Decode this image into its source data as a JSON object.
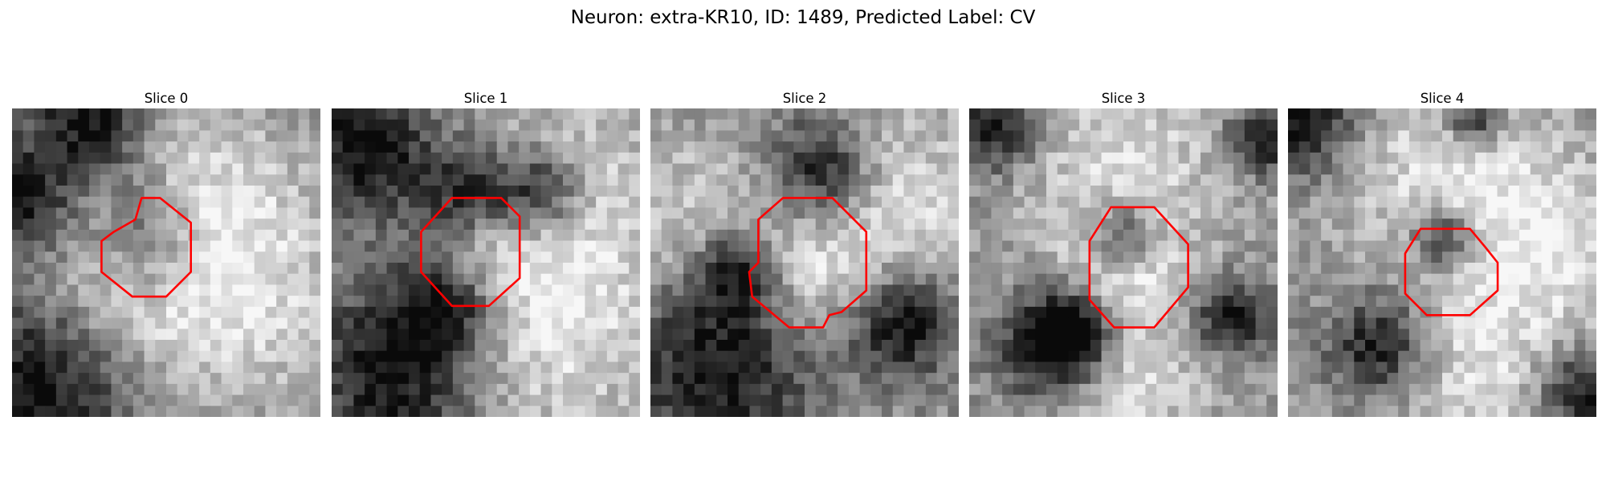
{
  "figure": {
    "title": "Neuron: extra-KR10, ID: 1489, Predicted Label: CV",
    "roi_color": "#ff0000",
    "colormap": "gray"
  },
  "slices": [
    {
      "title": "Slice 0",
      "seed": 11,
      "light": [
        [
          0.58,
          0.3,
          0.22
        ],
        [
          0.35,
          0.55,
          0.2
        ],
        [
          0.72,
          0.6,
          0.25
        ]
      ],
      "dark": [
        [
          0.45,
          0.42,
          0.14
        ],
        [
          0.08,
          0.9,
          0.22
        ],
        [
          0.25,
          0.04,
          0.14
        ],
        [
          0.02,
          0.3,
          0.12
        ]
      ],
      "roi": [
        [
          0.33,
          0.4
        ],
        [
          0.4,
          0.36
        ],
        [
          0.42,
          0.29
        ],
        [
          0.48,
          0.29
        ],
        [
          0.58,
          0.37
        ],
        [
          0.58,
          0.53
        ],
        [
          0.5,
          0.61
        ],
        [
          0.39,
          0.61
        ],
        [
          0.29,
          0.53
        ],
        [
          0.29,
          0.43
        ]
      ]
    },
    {
      "title": "Slice 1",
      "seed": 23,
      "light": [
        [
          0.47,
          0.47,
          0.12
        ],
        [
          0.75,
          0.3,
          0.25
        ],
        [
          0.7,
          0.75,
          0.25
        ]
      ],
      "dark": [
        [
          0.45,
          0.29,
          0.12
        ],
        [
          0.38,
          0.62,
          0.12
        ],
        [
          0.2,
          0.86,
          0.2
        ],
        [
          0.1,
          0.12,
          0.16
        ],
        [
          0.68,
          0.27,
          0.1
        ]
      ],
      "roi": [
        [
          0.29,
          0.4
        ],
        [
          0.39,
          0.29
        ],
        [
          0.55,
          0.29
        ],
        [
          0.61,
          0.35
        ],
        [
          0.61,
          0.55
        ],
        [
          0.51,
          0.64
        ],
        [
          0.39,
          0.64
        ],
        [
          0.29,
          0.53
        ]
      ]
    },
    {
      "title": "Slice 2",
      "seed": 37,
      "light": [
        [
          0.5,
          0.55,
          0.15
        ],
        [
          0.8,
          0.3,
          0.22
        ],
        [
          0.15,
          0.4,
          0.2
        ]
      ],
      "dark": [
        [
          0.55,
          0.2,
          0.12
        ],
        [
          0.28,
          0.52,
          0.1
        ],
        [
          0.22,
          0.82,
          0.22
        ],
        [
          0.82,
          0.7,
          0.12
        ]
      ],
      "roi": [
        [
          0.35,
          0.36
        ],
        [
          0.43,
          0.29
        ],
        [
          0.59,
          0.29
        ],
        [
          0.7,
          0.4
        ],
        [
          0.7,
          0.59
        ],
        [
          0.62,
          0.66
        ],
        [
          0.58,
          0.67
        ],
        [
          0.56,
          0.71
        ],
        [
          0.45,
          0.71
        ],
        [
          0.33,
          0.61
        ],
        [
          0.32,
          0.53
        ],
        [
          0.35,
          0.5
        ]
      ]
    },
    {
      "title": "Slice 3",
      "seed": 51,
      "light": [
        [
          0.5,
          0.52,
          0.12
        ],
        [
          0.5,
          0.2,
          0.25
        ],
        [
          0.5,
          0.88,
          0.2
        ]
      ],
      "dark": [
        [
          0.5,
          0.42,
          0.08
        ],
        [
          0.25,
          0.78,
          0.12
        ],
        [
          0.35,
          0.72,
          0.1
        ],
        [
          0.08,
          0.06,
          0.1
        ],
        [
          0.85,
          0.68,
          0.09
        ],
        [
          0.95,
          0.1,
          0.08
        ]
      ],
      "roi": [
        [
          0.39,
          0.43
        ],
        [
          0.46,
          0.32
        ],
        [
          0.6,
          0.32
        ],
        [
          0.71,
          0.44
        ],
        [
          0.71,
          0.58
        ],
        [
          0.6,
          0.71
        ],
        [
          0.47,
          0.71
        ],
        [
          0.39,
          0.62
        ]
      ]
    },
    {
      "title": "Slice 4",
      "seed": 67,
      "light": [
        [
          0.5,
          0.2,
          0.25
        ],
        [
          0.6,
          0.85,
          0.22
        ],
        [
          0.85,
          0.45,
          0.2
        ]
      ],
      "dark": [
        [
          0.05,
          0.04,
          0.12
        ],
        [
          0.3,
          0.77,
          0.12
        ],
        [
          0.5,
          0.42,
          0.07
        ],
        [
          0.95,
          0.92,
          0.1
        ],
        [
          0.6,
          0.04,
          0.06
        ]
      ],
      "roi": [
        [
          0.38,
          0.47
        ],
        [
          0.43,
          0.39
        ],
        [
          0.59,
          0.39
        ],
        [
          0.64,
          0.45
        ],
        [
          0.68,
          0.5
        ],
        [
          0.68,
          0.59
        ],
        [
          0.59,
          0.67
        ],
        [
          0.45,
          0.67
        ],
        [
          0.38,
          0.6
        ]
      ]
    }
  ]
}
